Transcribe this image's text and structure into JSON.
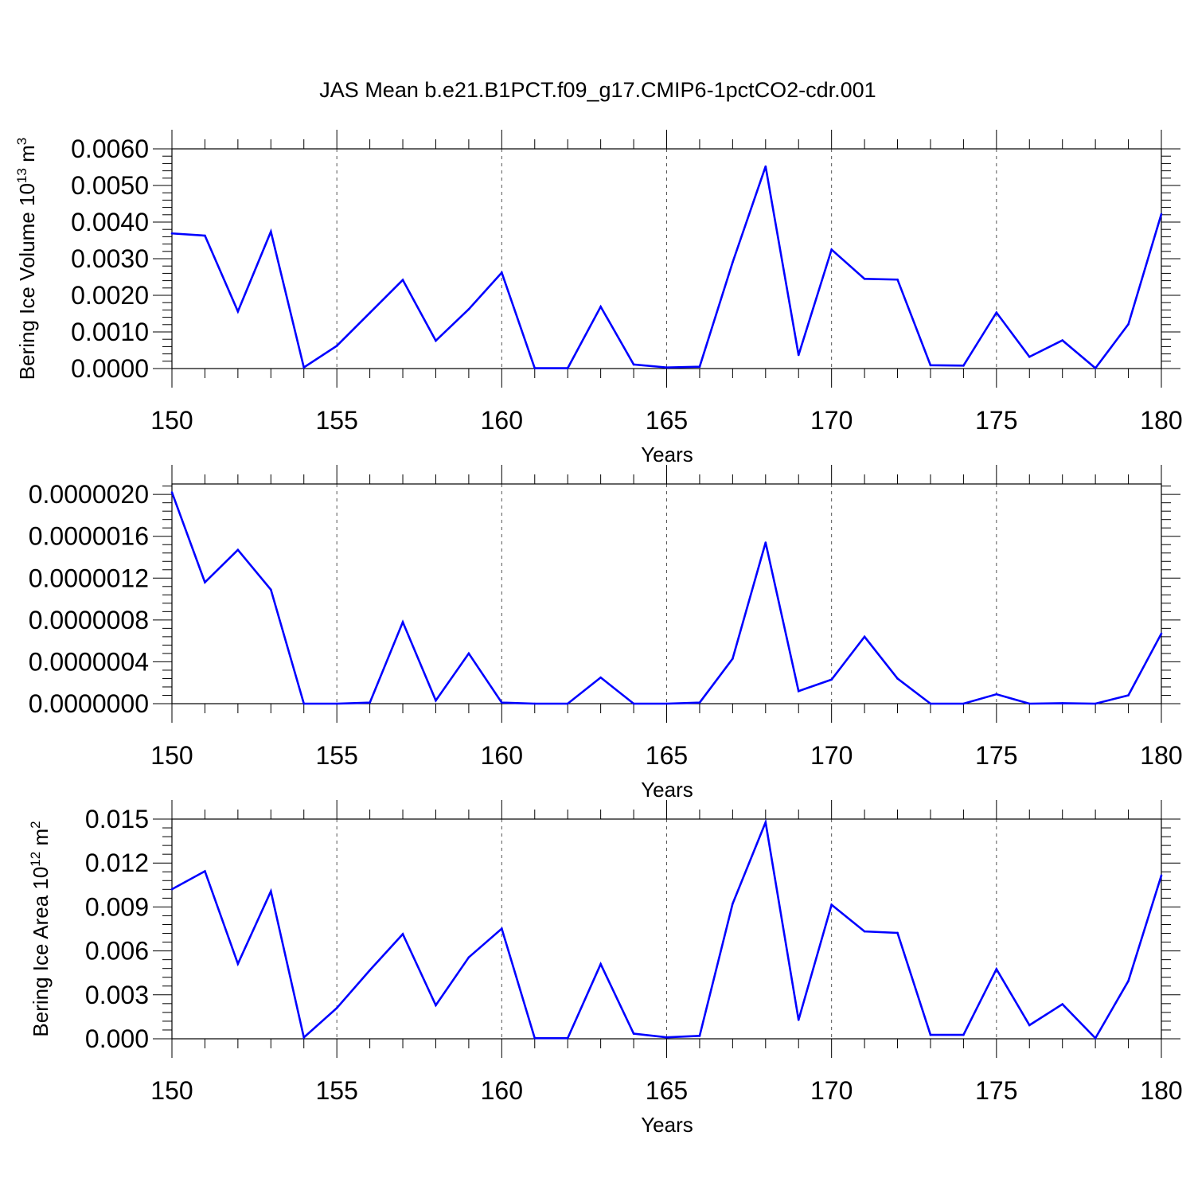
{
  "figure": {
    "title": "JAS Mean b.e21.B1PCT.f09_g17.CMIP6-1pctCO2-cdr.001"
  },
  "colors": {
    "line": "#0000ff",
    "grid": "#555555",
    "frame": "#000000"
  },
  "chart_data": [
    {
      "type": "line",
      "xlabel": "Years",
      "ylabel_main": "Bering Ice Volume 10",
      "ylabel_sup1": "13",
      "ylabel_mid": " m",
      "ylabel_sup2": "3",
      "xlim": [
        150,
        180
      ],
      "ylim": [
        0,
        0.006
      ],
      "xticks": [
        150,
        155,
        160,
        165,
        170,
        175,
        180
      ],
      "xtick_labels": [
        "150",
        "155",
        "160",
        "165",
        "170",
        "175",
        "180"
      ],
      "yticks": [
        0,
        0.001,
        0.002,
        0.003,
        0.004,
        0.005,
        0.006
      ],
      "ytick_labels": [
        "0.0000",
        "0.0010",
        "0.0020",
        "0.0030",
        "0.0040",
        "0.0050",
        "0.0060"
      ],
      "grid": "vertical dashed at major x ticks",
      "x": [
        150,
        151,
        152,
        153,
        154,
        155,
        156,
        157,
        158,
        159,
        160,
        161,
        162,
        163,
        164,
        165,
        166,
        167,
        168,
        169,
        170,
        171,
        172,
        173,
        174,
        175,
        176,
        177,
        178,
        179,
        180
      ],
      "series": [
        {
          "values": [
            0.00369,
            0.00363,
            0.00156,
            0.00374,
            3e-05,
            0.00062,
            0.00152,
            0.00242,
            0.00076,
            0.00162,
            0.00262,
            1e-05,
            1e-05,
            0.00169,
            0.00011,
            3e-05,
            5e-05,
            0.0029,
            0.00552,
            0.00037,
            0.00325,
            0.00245,
            0.00243,
            9e-05,
            8e-05,
            0.00153,
            0.00032,
            0.00077,
            1e-05,
            0.00121,
            0.00422
          ]
        }
      ]
    },
    {
      "type": "line",
      "xlabel": "Years",
      "xlim": [
        150,
        180
      ],
      "ylim": [
        0,
        2.1e-06
      ],
      "xticks": [
        150,
        155,
        160,
        165,
        170,
        175,
        180
      ],
      "xtick_labels": [
        "150",
        "155",
        "160",
        "165",
        "170",
        "175",
        "180"
      ],
      "yticks": [
        0,
        4e-07,
        8e-07,
        1.2e-06,
        1.6e-06,
        2e-06
      ],
      "ytick_labels": [
        "0.0000000",
        "0.0000004",
        "0.0000008",
        "0.0000012",
        "0.0000016",
        "0.0000020"
      ],
      "grid": "vertical dashed at major x ticks",
      "x": [
        150,
        151,
        152,
        153,
        154,
        155,
        156,
        157,
        158,
        159,
        160,
        161,
        162,
        163,
        164,
        165,
        166,
        167,
        168,
        169,
        170,
        171,
        172,
        173,
        174,
        175,
        176,
        177,
        178,
        179,
        180
      ],
      "series": [
        {
          "values": [
            2.02e-06,
            1.16e-06,
            1.47e-06,
            1.09e-06,
            0.0,
            0.0,
            1e-08,
            7.8e-07,
            3e-08,
            4.8e-07,
            1e-08,
            0.0,
            0.0,
            2.5e-07,
            0.0,
            0.0,
            1e-08,
            4.3e-07,
            1.54e-06,
            1.2e-07,
            2.3e-07,
            6.4e-07,
            2.4e-07,
            0.0,
            0.0,
            9e-08,
            0.0,
            4e-09,
            0.0,
            8e-08,
            6.7e-07
          ]
        }
      ]
    },
    {
      "type": "line",
      "xlabel": "Years",
      "ylabel_main": "Bering Ice Area 10",
      "ylabel_sup1": "12",
      "ylabel_mid": " m",
      "ylabel_sup2": "2",
      "xlim": [
        150,
        180
      ],
      "ylim": [
        0,
        0.015
      ],
      "xticks": [
        150,
        155,
        160,
        165,
        170,
        175,
        180
      ],
      "xtick_labels": [
        "150",
        "155",
        "160",
        "165",
        "170",
        "175",
        "180"
      ],
      "yticks": [
        0,
        0.003,
        0.006,
        0.009,
        0.012,
        0.015
      ],
      "ytick_labels": [
        "0.000",
        "0.003",
        "0.006",
        "0.009",
        "0.012",
        "0.015"
      ],
      "grid": "vertical dashed at major x ticks",
      "x": [
        150,
        151,
        152,
        153,
        154,
        155,
        156,
        157,
        158,
        159,
        160,
        161,
        162,
        163,
        164,
        165,
        166,
        167,
        168,
        169,
        170,
        171,
        172,
        173,
        174,
        175,
        176,
        177,
        178,
        179,
        180
      ],
      "series": [
        {
          "values": [
            0.01021,
            0.01144,
            0.00512,
            0.01007,
            9e-05,
            0.0021,
            0.00468,
            0.00715,
            0.00229,
            0.00556,
            0.00752,
            4e-05,
            4e-05,
            0.0051,
            0.00035,
            0.0001,
            0.0002,
            0.00922,
            0.01478,
            0.00129,
            0.00915,
            0.00733,
            0.00723,
            0.00027,
            0.00027,
            0.00476,
            0.00093,
            0.00236,
            4e-05,
            0.00395,
            0.01115
          ]
        }
      ]
    }
  ]
}
